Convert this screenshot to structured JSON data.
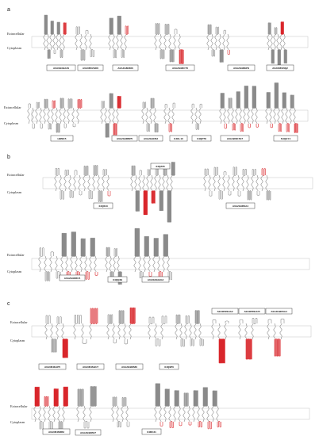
{
  "panels": [
    {
      "letter": "a",
      "extracellular": "Extracellular",
      "cytoplasm": "Cytoplasm",
      "ids_row1": [
        "A0A0H3HAZ9",
        "A0A0B6VGD0",
        "A0A2G8K886",
        "A0A2G9RCT0",
        "A0A2G9REP9",
        "A0A088VNQ2"
      ],
      "ids_row2": [
        "H9BIC5",
        "A0A2G9RBP5",
        "A0A2G9CB2",
        "K4KL10",
        "X4QP78",
        "A0A4W4K7E7",
        "S4QGY4"
      ]
    },
    {
      "letter": "b",
      "extracellular": "Extracellular",
      "cytoplasm": "Cytoplasm",
      "ids_row1": [
        "X4QZ65",
        "X4Q643",
        "A0A2G9RSA4"
      ],
      "ids_row2": [
        "A0A2G9KBU5",
        "X4QQ39",
        "A0A0H3HAG2"
      ]
    },
    {
      "letter": "c",
      "extracellular": "Extracellular",
      "cytoplasm": "Cytoplasm",
      "ids_top": [
        "A0A0B4SHA2",
        "A0A0B5SHU5",
        "A0A2G9KBA4"
      ],
      "ids_row1": [
        "A0A0B4KAP5",
        "A0A0B4SHU7",
        "A0A2G9KB80",
        "X4Q9P6"
      ],
      "ids_row2": [
        "A0A0B4SRB2",
        "A0A2G9KB07",
        "X4RC31"
      ]
    }
  ],
  "colors": {
    "line": "#8a8a8a",
    "highlight": "#d9262b"
  }
}
